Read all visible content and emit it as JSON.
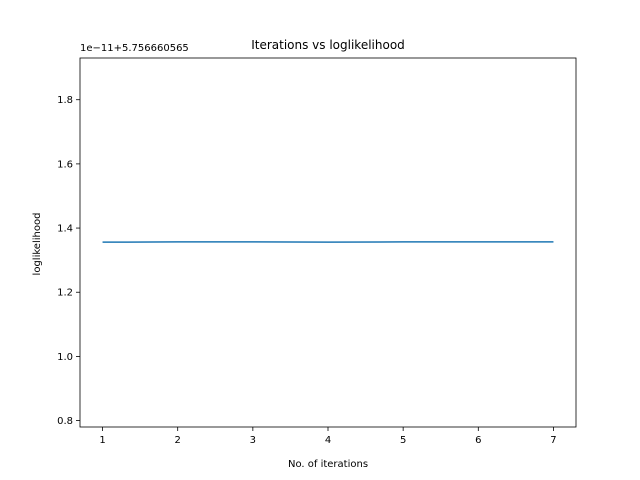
{
  "chart_data": {
    "type": "line",
    "title": "Iterations vs loglikelihood",
    "xlabel": "No. of iterations",
    "ylabel": "loglikelihood",
    "y_offset_text": "1e−11+5.756660565",
    "xlim": [
      0.7,
      7.3
    ],
    "ylim": [
      0.78,
      1.93
    ],
    "x_ticks": [
      1,
      2,
      3,
      4,
      5,
      6,
      7
    ],
    "y_ticks": [
      0.8,
      1.0,
      1.2,
      1.4,
      1.6,
      1.8
    ],
    "x_tick_labels": [
      "1",
      "2",
      "3",
      "4",
      "5",
      "6",
      "7"
    ],
    "y_tick_labels": [
      "0.8",
      "1.0",
      "1.2",
      "1.4",
      "1.6",
      "1.8"
    ],
    "grid": false,
    "series": [
      {
        "color": "#1f77b4",
        "x": [
          1,
          2,
          3,
          4,
          5,
          6,
          7
        ],
        "y": [
          1.356,
          1.357,
          1.357,
          1.356,
          1.357,
          1.357,
          1.357
        ]
      }
    ]
  }
}
